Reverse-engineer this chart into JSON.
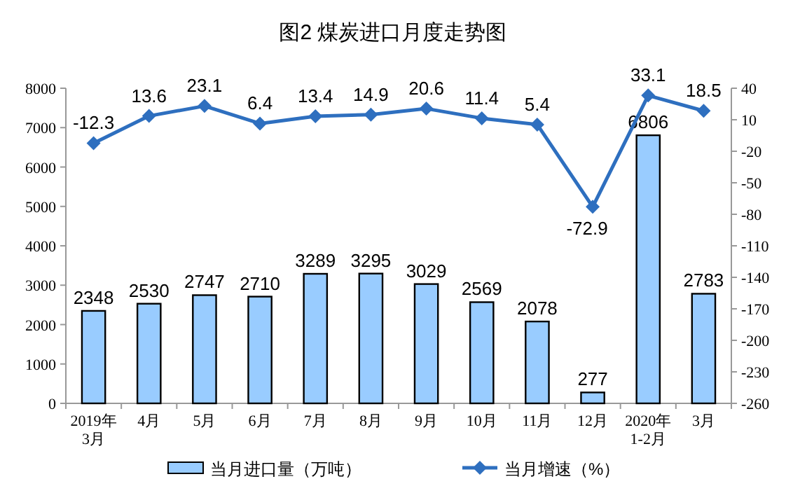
{
  "chart_data": {
    "type": "bar",
    "title": "图2  煤炭进口月度走势图",
    "categories": [
      "2019年\n3月",
      "4月",
      "5月",
      "6月",
      "7月",
      "8月",
      "9月",
      "10月",
      "11月",
      "12月",
      "2020年\n1-2月",
      "3月"
    ],
    "series": [
      {
        "name": "当月进口量（万吨）",
        "color": "#99ccff",
        "values": [
          2348,
          2530,
          2747,
          2710,
          3289,
          3295,
          3029,
          2569,
          2078,
          277,
          6806,
          2783
        ]
      },
      {
        "name": "当月增速（%）",
        "type": "line",
        "axis": "y2",
        "color": "#2e6fbf",
        "values": [
          -12.3,
          13.6,
          23.1,
          6.4,
          13.4,
          14.9,
          20.6,
          11.4,
          5.4,
          -72.9,
          33.1,
          18.5
        ]
      }
    ],
    "ylim": [
      0,
      8000
    ],
    "yticks": [
      0,
      1000,
      2000,
      3000,
      4000,
      5000,
      6000,
      7000,
      8000
    ],
    "y2lim": [
      -260,
      40
    ],
    "y2ticks": [
      -260,
      -230,
      -200,
      -170,
      -140,
      -110,
      -80,
      -50,
      -20,
      10,
      40
    ],
    "data_labels": true,
    "marker": "diamond",
    "legend": "bottom",
    "grid": false
  }
}
